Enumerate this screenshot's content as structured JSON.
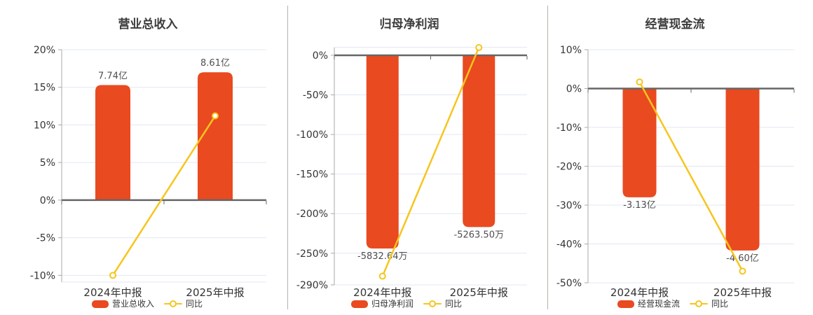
{
  "colors": {
    "background": "#ffffff",
    "bar": "#e94a20",
    "line": "#f7c51e",
    "grid_line": "#e1e7f2",
    "zero_line": "#666666",
    "axis_line": "#aaaaaa",
    "axis_label": "#333333",
    "value_label": "#4f4f4f",
    "title": "#3c3c3c",
    "legend_text": "#333333",
    "divider": "#b4b4ac"
  },
  "chart_data": [
    {
      "type": "bar+line",
      "title": "营业总收入",
      "categories": [
        "2024年中报",
        "2025年中报"
      ],
      "bar_series": {
        "name": "营业总收入",
        "value_labels": [
          "7.74亿",
          "8.61亿"
        ],
        "display_axis_values": [
          15.3,
          17.0
        ]
      },
      "line_series": {
        "name": "同比",
        "values_pct": [
          -10.0,
          11.2
        ]
      },
      "y_axis": {
        "min": -10.9,
        "max": 20,
        "unit": "%",
        "ticks": [
          {
            "value": 20,
            "label": "20%"
          },
          {
            "value": 15,
            "label": "15%"
          },
          {
            "value": 10,
            "label": "10%"
          },
          {
            "value": 5,
            "label": "5%"
          },
          {
            "value": 0,
            "label": "0%"
          },
          {
            "value": -5,
            "label": "-5%"
          },
          {
            "value": -10,
            "label": "-10%"
          },
          {
            "value": -10.9,
            "label": ""
          }
        ]
      },
      "legend_position": "bottom",
      "gridlines": true
    },
    {
      "type": "bar+line",
      "title": "归母净利润",
      "categories": [
        "2024年中报",
        "2025年中报"
      ],
      "bar_series": {
        "name": "归母净利润",
        "value_labels": [
          "-5832.64万",
          "-5263.50万"
        ],
        "display_axis_values": [
          -244,
          -217
        ]
      },
      "line_series": {
        "name": "同比",
        "values_pct": [
          -279,
          9.8
        ]
      },
      "y_axis": {
        "min": -290,
        "max": 10,
        "unit": "%",
        "ticks": [
          {
            "value": 10,
            "label": ""
          },
          {
            "value": 0,
            "label": "0%"
          },
          {
            "value": -50,
            "label": "-50%"
          },
          {
            "value": -100,
            "label": "-100%"
          },
          {
            "value": -150,
            "label": "-150%"
          },
          {
            "value": -200,
            "label": "-200%"
          },
          {
            "value": -250,
            "label": "-250%"
          },
          {
            "value": -290,
            "label": "-290%"
          }
        ]
      },
      "legend_position": "bottom",
      "gridlines": true
    },
    {
      "type": "bar+line",
      "title": "经营现金流",
      "categories": [
        "2024年中报",
        "2025年中报"
      ],
      "bar_series": {
        "name": "经营现金流",
        "value_labels": [
          "-3.13亿",
          "-4.60亿"
        ],
        "display_axis_values": [
          -28.0,
          -41.7
        ]
      },
      "line_series": {
        "name": "同比",
        "values_pct": [
          1.7,
          -47.0
        ]
      },
      "y_axis": {
        "min": -50,
        "max": 10,
        "unit": "%",
        "ticks": [
          {
            "value": 10,
            "label": "10%"
          },
          {
            "value": 0,
            "label": "0%"
          },
          {
            "value": -10,
            "label": "-10%"
          },
          {
            "value": -20,
            "label": "-20%"
          },
          {
            "value": -30,
            "label": "-30%"
          },
          {
            "value": -40,
            "label": "-40%"
          },
          {
            "value": -50,
            "label": "-50%"
          }
        ]
      },
      "legend_position": "bottom",
      "gridlines": true
    }
  ]
}
